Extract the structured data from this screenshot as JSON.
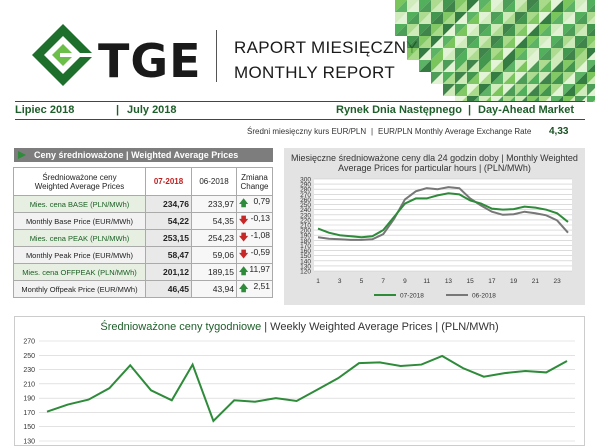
{
  "header": {
    "logo_text": "TGE",
    "title_line1": "RAPORT MIESIĘCZNY",
    "title_line2": "MONTHLY REPORT",
    "month_pl": "Lipiec 2018",
    "month_en": "July 2018",
    "market_pl": "Rynek Dnia Następnego",
    "market_en": "Day-Ahead Market",
    "fx_label_pl": "Średni miesięczny kurs EUR/PLN",
    "fx_label_en": "EUR/PLN Monthly Average Exchange Rate",
    "fx_value": "4,33",
    "separator": "|"
  },
  "summary": {
    "section_pl": "Ceny średnioważone",
    "section_en": "Weighted Average Prices",
    "header_label_pl": "Średnioważone ceny",
    "header_label_en": "Weighted Average Prices",
    "col_current": "07-2018",
    "col_previous": "06-2018",
    "col_change_pl": "Zmiana",
    "col_change_en": "Change",
    "rows": [
      {
        "label": "Mies. cena BASE (PLN/MWh)",
        "current": "234,76",
        "previous": "233,97",
        "change": "0,79",
        "dir": "up",
        "group": "g1"
      },
      {
        "label": "Monthly Base Price (EUR/MWh)",
        "current": "54,22",
        "previous": "54,35",
        "change": "-0,13",
        "dir": "down",
        "group": "g2"
      },
      {
        "label": "Mies. cena PEAK (PLN/MWh)",
        "current": "253,15",
        "previous": "254,23",
        "change": "-1,08",
        "dir": "down",
        "group": "g1"
      },
      {
        "label": "Monthly Peak Price (EUR/MWh)",
        "current": "58,47",
        "previous": "59,06",
        "change": "-0,59",
        "dir": "down",
        "group": "g2"
      },
      {
        "label": "Mies. cena OFFPEAK (PLN/MWh)",
        "current": "201,12",
        "previous": "189,15",
        "change": "11,97",
        "dir": "up",
        "group": "g1"
      },
      {
        "label": "Monthly Offpeak Price (EUR/MWh)",
        "current": "46,45",
        "previous": "43,94",
        "change": "2,51",
        "dir": "up",
        "group": "g2"
      }
    ],
    "arrow_up": "🡅",
    "arrow_down": "🡇"
  },
  "chart_data": [
    {
      "type": "line",
      "title_pl": "Miesięczne średnioważone ceny dla 24 godzin doby",
      "title_en": "Monthly Weighted Average Prices for particular hours",
      "unit": "(PLN/MWh)",
      "x": [
        1,
        2,
        3,
        4,
        5,
        6,
        7,
        8,
        9,
        10,
        11,
        12,
        13,
        14,
        15,
        16,
        17,
        18,
        19,
        20,
        21,
        22,
        23,
        24
      ],
      "x_ticks": [
        1,
        3,
        5,
        7,
        9,
        11,
        13,
        15,
        17,
        19,
        21,
        23
      ],
      "ylim": [
        120,
        300
      ],
      "y_ticks": [
        120,
        130,
        140,
        150,
        160,
        170,
        180,
        190,
        200,
        210,
        220,
        230,
        240,
        250,
        260,
        270,
        280,
        290,
        300
      ],
      "grid": true,
      "legend": "bottom",
      "series": [
        {
          "name": "07-2018",
          "color": "#2e8b3a",
          "values": [
            203,
            195,
            190,
            188,
            186,
            188,
            200,
            226,
            252,
            262,
            262,
            268,
            272,
            270,
            258,
            252,
            242,
            240,
            241,
            246,
            244,
            240,
            233,
            216
          ]
        },
        {
          "name": "06-2018",
          "color": "#777777",
          "values": [
            186,
            183,
            182,
            181,
            181,
            182,
            192,
            222,
            260,
            276,
            282,
            280,
            284,
            282,
            262,
            248,
            236,
            230,
            231,
            236,
            233,
            229,
            219,
            195
          ]
        }
      ]
    },
    {
      "type": "line",
      "title_pl": "Średnioważone ceny tygodniowe",
      "title_en": "Weekly Weighted Average Prices",
      "unit": "(PLN/MWh)",
      "ylim": [
        130,
        270
      ],
      "y_ticks": [
        130,
        150,
        170,
        190,
        210,
        230,
        250,
        270
      ],
      "grid": true,
      "series": [
        {
          "name": "",
          "color": "#2e8b3a",
          "values": [
            171,
            181,
            188,
            204,
            236,
            201,
            187,
            237,
            158,
            187,
            185,
            190,
            186,
            202,
            218,
            239,
            240,
            235,
            237,
            249,
            232,
            220,
            225,
            228,
            226,
            242
          ]
        }
      ]
    }
  ]
}
